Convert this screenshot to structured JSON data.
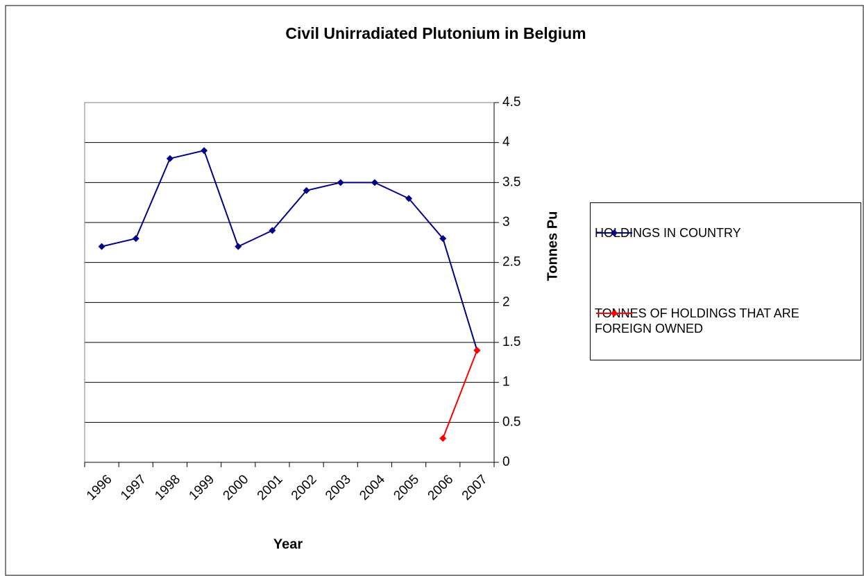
{
  "chart_data": {
    "type": "line",
    "title": "Civil Unirradiated Plutonium in Belgium",
    "x_label": "Year",
    "y_label": "Tonnes Pu",
    "categories": [
      "1996",
      "1997",
      "1998",
      "1999",
      "2000",
      "2001",
      "2002",
      "2003",
      "2004",
      "2005",
      "2006",
      "2007"
    ],
    "series": [
      {
        "name": "HOLDINGS IN COUNTRY",
        "color": "#000080",
        "values": [
          2.7,
          2.8,
          3.8,
          3.9,
          2.7,
          2.9,
          3.4,
          3.5,
          3.5,
          3.3,
          2.8,
          1.4
        ]
      },
      {
        "name": "TONNES OF HOLDINGS THAT ARE FOREIGN OWNED",
        "color": "#ff0000",
        "values": [
          null,
          null,
          null,
          null,
          null,
          null,
          null,
          null,
          null,
          null,
          0.3,
          1.4
        ]
      }
    ],
    "ylim": [
      0,
      4.5
    ],
    "yticks": [
      0,
      0.5,
      1,
      1.5,
      2,
      2.5,
      3,
      3.5,
      4,
      4.5
    ],
    "grid": true,
    "y_axis_side": "right",
    "legend": "right"
  }
}
